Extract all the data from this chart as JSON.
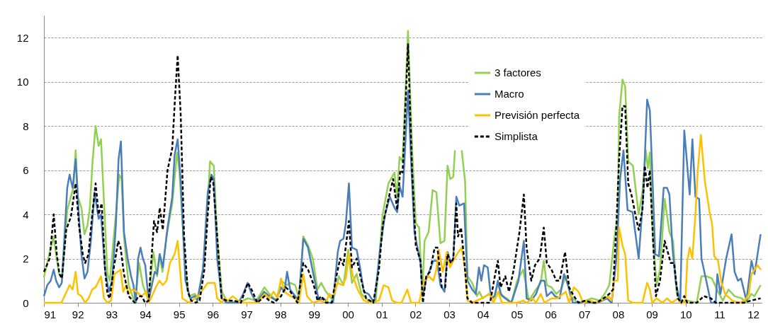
{
  "chart_data": {
    "type": "line",
    "legend": "top right",
    "grid": "y",
    "xlim": [
      1991,
      2012.25
    ],
    "ylim": [
      0,
      13
    ],
    "yticks": [
      0,
      2,
      4,
      6,
      8,
      10,
      12
    ],
    "xticks": [
      {
        "value": 1991,
        "label": "91"
      },
      {
        "value": 1992,
        "label": "92"
      },
      {
        "value": 1993,
        "label": "93"
      },
      {
        "value": 1994,
        "label": "94"
      },
      {
        "value": 1995,
        "label": "95"
      },
      {
        "value": 1996,
        "label": "96"
      },
      {
        "value": 1997,
        "label": "97"
      },
      {
        "value": 1998,
        "label": "98"
      },
      {
        "value": 1999,
        "label": "99"
      },
      {
        "value": 2000,
        "label": "00"
      },
      {
        "value": 2001,
        "label": "01"
      },
      {
        "value": 2002,
        "label": "02"
      },
      {
        "value": 2003,
        "label": "03"
      },
      {
        "value": 2004,
        "label": "04"
      },
      {
        "value": 2005,
        "label": "05"
      },
      {
        "value": 2006,
        "label": "06"
      },
      {
        "value": 2007,
        "label": "07"
      },
      {
        "value": 2008,
        "label": "08"
      },
      {
        "value": 2009,
        "label": "09"
      },
      {
        "value": 2010,
        "label": "10"
      },
      {
        "value": 2011,
        "label": "11"
      },
      {
        "value": 2012,
        "label": "12"
      }
    ],
    "series": [
      {
        "name": "3 factores",
        "color": "#92d050",
        "line_style": "solid",
        "x": [
          1991.0,
          1991.28,
          1991.45,
          1991.55,
          1991.69,
          1991.87,
          1991.94,
          1992.0,
          1992.11,
          1992.2,
          1992.29,
          1992.36,
          1992.44,
          1992.53,
          1992.62,
          1992.69,
          1992.78,
          1992.88,
          1992.95,
          1993.04,
          1993.16,
          1993.23,
          1993.3,
          1993.37,
          1993.51,
          1993.69,
          1993.82,
          1993.93,
          1994.1,
          1994.24,
          1994.35,
          1994.42,
          1994.51,
          1994.63,
          1994.8,
          1994.94,
          1995.01,
          1995.19,
          1995.3,
          1995.47,
          1995.57,
          1995.75,
          1995.92,
          1996.03,
          1996.13,
          1996.27,
          1996.41,
          1996.76,
          1997.04,
          1997.29,
          1997.53,
          1997.67,
          1997.88,
          1998.02,
          1998.2,
          1998.3,
          1998.44,
          1998.55,
          1998.68,
          1998.82,
          1998.96,
          1999.1,
          1999.21,
          1999.35,
          1999.56,
          1999.73,
          1999.87,
          2000.01,
          2000.12,
          2000.26,
          2000.4,
          2000.61,
          2000.82,
          2001.03,
          2001.2,
          2001.38,
          2001.45,
          2001.53,
          2001.62,
          2001.78,
          2001.9,
          2002.01,
          2002.11,
          2002.2,
          2002.27,
          2002.39,
          2002.51,
          2002.62,
          2002.74,
          2002.86,
          2002.95,
          2003.03,
          2003.12,
          2003.17,
          2003.27,
          2003.37,
          2003.47,
          2003.54,
          2003.68,
          2003.82,
          2003.89,
          2003.99,
          2004.17,
          2004.31,
          2004.45,
          2004.56,
          2004.7,
          2004.84,
          2005.01,
          2005.19,
          2005.36,
          2005.57,
          2005.71,
          2005.8,
          2005.89,
          2006.03,
          2006.17,
          2006.31,
          2006.45,
          2006.59,
          2006.8,
          2007.04,
          2007.22,
          2007.46,
          2007.6,
          2007.74,
          2007.88,
          2007.99,
          2008.03,
          2008.13,
          2008.21,
          2008.3,
          2008.44,
          2008.61,
          2008.72,
          2008.82,
          2008.88,
          2008.94,
          2009.03,
          2009.14,
          2009.24,
          2009.38,
          2009.52,
          2009.63,
          2009.73,
          2009.84,
          2010.05,
          2010.33,
          2010.47,
          2010.61,
          2010.78,
          2010.96,
          2011.1,
          2011.27,
          2011.45,
          2011.66,
          2011.8,
          2011.94,
          2012.04,
          2012.22
        ],
        "values": [
          1.15,
          3.0,
          1.3,
          1.2,
          4.2,
          5.2,
          6.9,
          4.8,
          4.3,
          3.1,
          3.5,
          4.3,
          6.4,
          8.0,
          7.1,
          7.4,
          4.5,
          1.3,
          1.0,
          2.5,
          4.5,
          5.8,
          5.6,
          3.0,
          0.8,
          0.0,
          1.8,
          0.8,
          0.1,
          2.3,
          1.2,
          2.2,
          1.4,
          3.0,
          4.5,
          6.8,
          6.0,
          1.5,
          0.3,
          0.4,
          0.2,
          2.0,
          6.4,
          6.2,
          3.0,
          0.5,
          0.1,
          0.0,
          0.2,
          0.1,
          0.7,
          0.4,
          0.1,
          1.0,
          0.8,
          0.9,
          0.8,
          0.2,
          3.0,
          2.6,
          2.0,
          0.6,
          0.9,
          0.5,
          0.1,
          1.2,
          0.8,
          2.4,
          0.9,
          1.3,
          0.4,
          0.1,
          0.0,
          4.0,
          5.4,
          5.9,
          4.7,
          6.6,
          6.4,
          12.3,
          7.0,
          3.6,
          3.4,
          0.3,
          2.8,
          3.2,
          5.1,
          5.0,
          2.7,
          2.8,
          6.2,
          5.6,
          5.7,
          6.9,
          null,
          6.9,
          5.5,
          1.2,
          0.9,
          0.3,
          0.5,
          0.2,
          0.4,
          0.2,
          0.9,
          0.3,
          0.2,
          0.0,
          1.0,
          1.5,
          0.1,
          0.6,
          0.9,
          1.9,
          0.8,
          0.7,
          0.4,
          0.6,
          1.2,
          0.3,
          0.0,
          0.1,
          0.2,
          0.1,
          0.4,
          0.8,
          2.8,
          4.0,
          8.4,
          10.1,
          9.8,
          6.4,
          6.2,
          4.0,
          5.0,
          6.9,
          6.1,
          6.8,
          3.0,
          0.8,
          1.5,
          4.7,
          3.2,
          2.8,
          0.5,
          0.0,
          0.1,
          0.0,
          1.2,
          1.2,
          1.1,
          0.5,
          0.1,
          0.6,
          0.3,
          0.2,
          0.0,
          0.4,
          0.3,
          0.8
        ]
      },
      {
        "name": "Macro",
        "color": "#4a7ebb",
        "line_style": "solid",
        "x": [
          1991.0,
          1991.1,
          1991.2,
          1991.29,
          1991.36,
          1991.45,
          1991.53,
          1991.69,
          1991.76,
          1991.85,
          1991.94,
          1992.04,
          1992.11,
          1992.2,
          1992.29,
          1992.39,
          1992.5,
          1992.62,
          1992.69,
          1992.81,
          1992.92,
          1993.02,
          1993.13,
          1993.21,
          1993.28,
          1993.37,
          1993.48,
          1993.58,
          1993.65,
          1993.72,
          1993.79,
          1993.86,
          1993.93,
          1994.0,
          1994.1,
          1994.28,
          1994.35,
          1994.43,
          1994.52,
          1994.66,
          1994.8,
          1994.87,
          1994.96,
          1995.05,
          1995.19,
          1995.33,
          1995.47,
          1995.54,
          1995.71,
          1995.85,
          1995.96,
          1996.03,
          1996.13,
          1996.27,
          1996.41,
          1996.76,
          1996.9,
          1997.03,
          1997.15,
          1997.29,
          1997.52,
          1997.67,
          1997.88,
          1998.02,
          1998.12,
          1998.2,
          1998.29,
          1998.44,
          1998.55,
          1998.68,
          1998.82,
          1998.99,
          1999.14,
          1999.28,
          1999.42,
          1999.56,
          1999.7,
          1999.77,
          1999.87,
          1999.94,
          2000.03,
          2000.12,
          2000.26,
          2000.36,
          2000.47,
          2000.61,
          2000.78,
          2000.96,
          2001.1,
          2001.24,
          2001.38,
          2001.46,
          2001.53,
          2001.62,
          2001.78,
          2001.9,
          2001.97,
          2002.15,
          2002.22,
          2002.32,
          2002.43,
          2002.53,
          2002.64,
          2002.74,
          2002.86,
          2002.95,
          2003.05,
          2003.12,
          2003.21,
          2003.3,
          2003.44,
          2003.54,
          2003.68,
          2003.79,
          2003.88,
          2003.95,
          2004.03,
          2004.14,
          2004.24,
          2004.35,
          2004.44,
          2004.52,
          2004.66,
          2004.84,
          2005.05,
          2005.21,
          2005.29,
          2005.43,
          2005.57,
          2005.71,
          2005.82,
          2005.89,
          2006.03,
          2006.13,
          2006.27,
          2006.4,
          2006.52,
          2006.66,
          2006.9,
          2007.18,
          2007.39,
          2007.67,
          2007.81,
          2007.95,
          2008.06,
          2008.16,
          2008.28,
          2008.43,
          2008.61,
          2008.75,
          2008.86,
          2008.94,
          2009.01,
          2009.1,
          2009.21,
          2009.35,
          2009.45,
          2009.52,
          2009.61,
          2009.71,
          2009.84,
          2009.96,
          2010.12,
          2010.2,
          2010.29,
          2010.4,
          2010.47,
          2010.61,
          2010.75,
          2010.89,
          2010.94,
          2011.03,
          2011.2,
          2011.36,
          2011.45,
          2011.55,
          2011.64,
          2011.8,
          2011.95,
          2012.04,
          2012.22
        ],
        "values": [
          0.3,
          0.8,
          1.0,
          1.5,
          1.0,
          0.7,
          0.9,
          5.2,
          5.8,
          5.2,
          6.5,
          3.8,
          2.2,
          1.1,
          1.4,
          2.8,
          5.0,
          3.8,
          4.0,
          1.5,
          0.5,
          1.0,
          3.5,
          6.5,
          7.3,
          3.2,
          2.0,
          1.2,
          0.8,
          0.0,
          2.0,
          2.5,
          2.0,
          1.7,
          0.1,
          1.4,
          1.3,
          2.2,
          1.6,
          3.4,
          4.8,
          6.7,
          7.4,
          5.5,
          1.0,
          0.2,
          0.3,
          0.1,
          1.5,
          5.0,
          5.8,
          5.6,
          2.0,
          0.2,
          0.0,
          0.0,
          0.4,
          0.9,
          0.4,
          0.0,
          0.5,
          0.3,
          0.1,
          0.7,
          0.5,
          1.4,
          0.6,
          0.3,
          0.1,
          2.9,
          2.5,
          1.2,
          0.1,
          0.2,
          0.0,
          0.0,
          2.3,
          2.8,
          2.9,
          3.6,
          5.4,
          2.5,
          2.4,
          1.6,
          0.5,
          0.4,
          0.0,
          2.5,
          4.0,
          4.8,
          4.3,
          4.1,
          5.3,
          4.8,
          9.6,
          5.5,
          3.2,
          1.8,
          0.3,
          1.1,
          1.5,
          1.9,
          1.9,
          0.8,
          0.5,
          2.3,
          1.8,
          2.0,
          4.8,
          4.4,
          4.5,
          1.0,
          0.6,
          0.4,
          1.6,
          1.0,
          1.7,
          1.6,
          0.2,
          0.3,
          1.0,
          0.4,
          0.2,
          0.0,
          1.0,
          2.8,
          0.2,
          0.1,
          0.4,
          1.0,
          1.0,
          0.3,
          0.5,
          0.3,
          0.2,
          1.3,
          0.8,
          0.0,
          0.0,
          0.0,
          0.0,
          0.2,
          0.0,
          2.0,
          5.6,
          6.9,
          4.2,
          4.1,
          2.0,
          5.0,
          9.2,
          8.7,
          6.0,
          2.2,
          2.1,
          5.2,
          5.2,
          4.9,
          2.5,
          0.9,
          0.0,
          7.8,
          4.9,
          7.4,
          4.8,
          4.7,
          2.0,
          1.0,
          0.0,
          0.0,
          1.3,
          0.4,
          2.0,
          3.1,
          1.4,
          1.0,
          1.1,
          0.1,
          1.9,
          1.3,
          3.1
        ]
      },
      {
        "name": "Previsión perfecta",
        "color": "#ffc000",
        "line_style": "solid",
        "x": [
          1991.0,
          1991.52,
          1991.76,
          1991.85,
          1991.94,
          1992.01,
          1992.11,
          1992.22,
          1992.32,
          1992.43,
          1992.53,
          1992.69,
          1992.78,
          1992.88,
          1992.99,
          1993.09,
          1993.27,
          1993.35,
          1993.44,
          1993.51,
          1993.62,
          1993.75,
          1993.89,
          1994.03,
          1994.1,
          1994.17,
          1994.31,
          1994.42,
          1994.52,
          1994.63,
          1994.73,
          1994.87,
          1994.96,
          1995.1,
          1995.29,
          1995.57,
          1995.71,
          1995.85,
          1995.96,
          1996.06,
          1996.13,
          1996.27,
          1996.34,
          1996.45,
          1996.59,
          1996.83,
          1997.32,
          1997.53,
          1997.67,
          1997.8,
          1997.92,
          1998.02,
          1998.12,
          1998.3,
          1998.44,
          1998.55,
          1998.68,
          1998.79,
          1998.96,
          1999.17,
          1999.35,
          1999.45,
          1999.56,
          1999.7,
          1999.84,
          1999.94,
          2000.03,
          2000.15,
          2000.29,
          2000.47,
          2000.68,
          2000.92,
          2001.06,
          2001.2,
          2001.31,
          2001.45,
          2001.59,
          2001.76,
          2001.87,
          2002.11,
          2002.25,
          2002.39,
          2002.53,
          2002.62,
          2002.69,
          2002.81,
          2002.93,
          2003.02,
          2003.12,
          2003.23,
          2003.37,
          2003.47,
          2003.54,
          2003.68,
          2003.96,
          2004.21,
          2004.31,
          2004.45,
          2004.56,
          2004.8,
          2005.01,
          2005.19,
          2005.29,
          2005.47,
          2005.57,
          2005.71,
          2005.82,
          2006.03,
          2006.2,
          2006.45,
          2006.55,
          2006.69,
          2006.83,
          2006.97,
          2007.18,
          2007.32,
          2007.5,
          2007.71,
          2007.81,
          2007.88,
          2007.99,
          2008.03,
          2008.13,
          2008.21,
          2008.3,
          2008.44,
          2008.72,
          2008.86,
          2008.94,
          2009.01,
          2009.14,
          2009.31,
          2009.45,
          2009.59,
          2009.77,
          2009.84,
          2009.99,
          2010.05,
          2010.12,
          2010.2,
          2010.29,
          2010.36,
          2010.45,
          2010.57,
          2010.71,
          2010.78,
          2010.85,
          2010.96,
          2011.06,
          2011.17,
          2011.38,
          2011.59,
          2011.76,
          2011.87,
          2011.95,
          2012.13,
          2012.23
        ],
        "values": [
          0.0,
          0.0,
          0.8,
          0.6,
          1.4,
          0.4,
          0.3,
          0.0,
          0.2,
          0.6,
          0.7,
          1.2,
          0.2,
          0.0,
          0.1,
          1.3,
          1.5,
          0.5,
          0.8,
          0.4,
          0.6,
          0.5,
          0.3,
          0.5,
          0.0,
          0.2,
          0.7,
          1.0,
          0.8,
          1.0,
          1.8,
          2.2,
          2.8,
          0.2,
          0.0,
          0.3,
          0.6,
          0.9,
          0.9,
          0.9,
          0.2,
          0.0,
          0.2,
          0.1,
          0.3,
          0.0,
          0.0,
          0.4,
          0.2,
          0.5,
          0.2,
          1.1,
          0.5,
          0.3,
          0.2,
          0.0,
          1.3,
          0.3,
          0.0,
          0.1,
          0.0,
          0.4,
          0.3,
          0.9,
          0.8,
          1.1,
          2.2,
          1.2,
          0.6,
          0.1,
          0.0,
          0.1,
          0.8,
          0.7,
          0.1,
          0.0,
          0.0,
          0.6,
          0.0,
          0.0,
          1.0,
          1.2,
          1.0,
          1.5,
          2.4,
          1.4,
          2.3,
          1.6,
          1.9,
          2.2,
          2.5,
          1.5,
          0.1,
          0.0,
          0.2,
          0.4,
          0.0,
          0.5,
          0.0,
          0.0,
          0.0,
          0.1,
          0.0,
          0.2,
          0.0,
          0.4,
          0.0,
          0.2,
          0.2,
          0.5,
          0.0,
          0.7,
          0.5,
          0.0,
          0.1,
          0.0,
          0.1,
          0.3,
          0.1,
          1.0,
          1.0,
          3.4,
          2.6,
          2.2,
          0.1,
          0.0,
          0.0,
          0.9,
          0.6,
          0.0,
          0.2,
          0.0,
          0.2,
          0.0,
          0.2,
          0.0,
          0.0,
          1.9,
          2.5,
          2.0,
          4.0,
          6.0,
          7.6,
          5.5,
          4.1,
          3.6,
          2.1,
          1.9,
          0.9,
          0.4,
          0.1,
          0.0,
          0.1,
          0.4,
          1.3,
          1.7,
          1.5
        ]
      },
      {
        "name": "Simplista",
        "color": "#000000",
        "line_style": "dashed",
        "x": [
          1991.0,
          1991.17,
          1991.29,
          1991.38,
          1991.46,
          1991.53,
          1991.66,
          1991.8,
          1991.94,
          1992.04,
          1992.15,
          1992.22,
          1992.32,
          1992.43,
          1992.53,
          1992.62,
          1992.71,
          1992.81,
          1992.88,
          1992.95,
          1993.06,
          1993.2,
          1993.27,
          1993.37,
          1993.51,
          1993.69,
          1993.8,
          1993.89,
          1994.0,
          1994.1,
          1994.26,
          1994.35,
          1994.43,
          1994.52,
          1994.66,
          1994.8,
          1994.89,
          1994.96,
          1995.05,
          1995.15,
          1995.26,
          1995.36,
          1995.5,
          1995.61,
          1995.75,
          1995.85,
          1995.94,
          1996.01,
          1996.13,
          1996.26,
          1996.41,
          1996.62,
          1996.83,
          1997.04,
          1997.18,
          1997.32,
          1997.53,
          1997.67,
          1997.81,
          1998.02,
          1998.16,
          1998.3,
          1998.51,
          1998.68,
          1998.82,
          1998.99,
          1999.1,
          1999.21,
          1999.35,
          1999.52,
          1999.66,
          1999.77,
          1999.87,
          2000.03,
          2000.12,
          2000.26,
          2000.4,
          2000.54,
          2000.75,
          2000.92,
          2001.03,
          2001.17,
          2001.34,
          2001.46,
          2001.55,
          2001.62,
          2001.78,
          2001.9,
          2002.01,
          2002.15,
          2002.22,
          2002.32,
          2002.43,
          2002.57,
          2002.65,
          2002.78,
          2002.88,
          2002.95,
          2003.05,
          2003.12,
          2003.21,
          2003.26,
          2003.35,
          2003.44,
          2003.54,
          2003.68,
          2003.99,
          2004.21,
          2004.35,
          2004.44,
          2004.52,
          2004.66,
          2004.77,
          2004.91,
          2005.08,
          2005.21,
          2005.29,
          2005.43,
          2005.54,
          2005.68,
          2005.8,
          2005.89,
          2006.03,
          2006.17,
          2006.27,
          2006.43,
          2006.55,
          2006.69,
          2006.83,
          2007.04,
          2007.22,
          2007.36,
          2007.57,
          2007.74,
          2007.85,
          2007.95,
          2008.03,
          2008.13,
          2008.21,
          2008.3,
          2008.41,
          2008.51,
          2008.61,
          2008.72,
          2008.79,
          2008.87,
          2008.94,
          2009.03,
          2009.12,
          2009.24,
          2009.38,
          2009.56,
          2009.66,
          2009.77,
          2009.87,
          2009.96,
          2010.05,
          2010.33,
          2010.54,
          2010.75,
          2010.89,
          2011.1,
          2011.45,
          2011.73,
          2011.94,
          2012.22
        ],
        "values": [
          1.4,
          2.0,
          4.0,
          2.2,
          1.3,
          1.1,
          3.3,
          3.9,
          5.4,
          3.5,
          2.2,
          1.8,
          2.2,
          4.0,
          5.4,
          4.0,
          4.5,
          1.5,
          0.4,
          0.2,
          1.5,
          2.8,
          2.5,
          1.3,
          0.3,
          0.0,
          0.3,
          0.3,
          0.0,
          0.1,
          3.7,
          3.2,
          4.3,
          3.3,
          6.0,
          7.0,
          9.5,
          11.2,
          8.5,
          3.0,
          0.5,
          0.1,
          0.0,
          0.1,
          1.5,
          4.0,
          5.7,
          5.5,
          3.0,
          0.2,
          0.1,
          0.1,
          0.0,
          0.9,
          0.5,
          0.0,
          0.3,
          0.1,
          0.0,
          0.3,
          0.7,
          0.5,
          0.0,
          1.8,
          1.5,
          0.8,
          0.1,
          0.3,
          0.0,
          0.0,
          1.2,
          2.0,
          1.7,
          3.7,
          1.6,
          2.0,
          1.0,
          0.2,
          0.0,
          1.5,
          3.5,
          4.5,
          5.6,
          4.2,
          6.0,
          5.9,
          11.7,
          6.0,
          2.6,
          1.9,
          0.0,
          1.2,
          1.4,
          2.5,
          2.5,
          0.7,
          0.7,
          2.2,
          1.8,
          2.0,
          4.5,
          3.0,
          3.4,
          2.0,
          0.2,
          0.0,
          0.0,
          0.0,
          1.2,
          1.9,
          0.7,
          1.2,
          0.5,
          1.5,
          3.2,
          4.9,
          2.5,
          1.0,
          1.7,
          2.0,
          3.4,
          1.8,
          1.5,
          1.0,
          1.0,
          2.3,
          0.7,
          0.3,
          0.0,
          0.1,
          0.0,
          0.0,
          0.2,
          0.4,
          0.6,
          3.5,
          6.5,
          8.9,
          8.9,
          5.4,
          4.8,
          4.0,
          3.3,
          4.2,
          6.2,
          5.2,
          6.0,
          3.0,
          0.3,
          1.0,
          2.8,
          1.8,
          1.8,
          0.2,
          0.0,
          0.3,
          0.0,
          0.0,
          0.3,
          0.2,
          0.0,
          0.0,
          0.0,
          0.0,
          0.1,
          0.2
        ]
      }
    ]
  }
}
